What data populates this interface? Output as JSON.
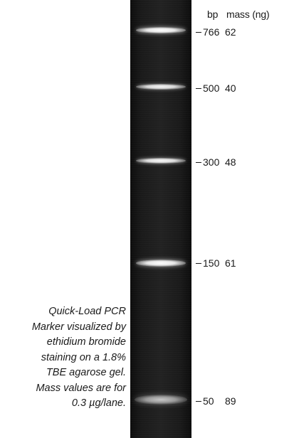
{
  "headers": {
    "bp": "bp",
    "mass": "mass (ng)"
  },
  "markers": [
    {
      "bp": "766",
      "mass": "62"
    },
    {
      "bp": "500",
      "mass": "40"
    },
    {
      "bp": "300",
      "mass": "48"
    },
    {
      "bp": "150",
      "mass": "61"
    },
    {
      "bp": "50",
      "mass": "89"
    }
  ],
  "caption": {
    "lines": [
      "Quick-Load PCR",
      "Marker visualized by",
      "ethidium bromide",
      "staining on a 1.8%",
      "TBE agarose gel.",
      "Mass values are for",
      "0.3 µg/lane."
    ]
  }
}
